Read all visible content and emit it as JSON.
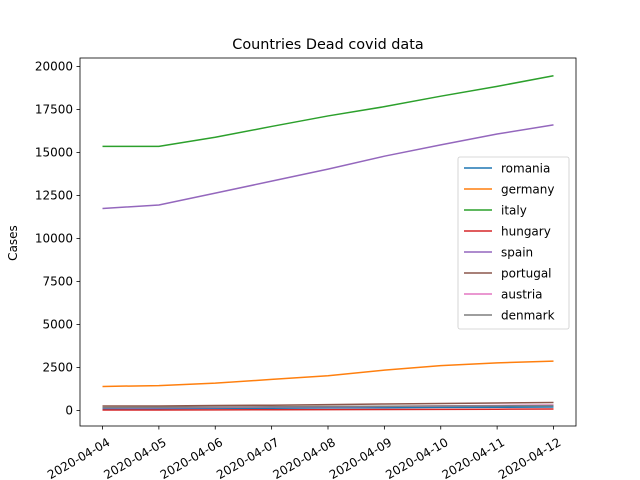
{
  "chart_data": {
    "type": "line",
    "title": "Countries Dead covid data",
    "xlabel": "",
    "ylabel": "Cases",
    "x": [
      "2020-04-04",
      "2020-04-05",
      "2020-04-06",
      "2020-04-07",
      "2020-04-08",
      "2020-04-09",
      "2020-04-10",
      "2020-04-11",
      "2020-04-12"
    ],
    "ylim": [
      -900,
      20500
    ],
    "yticks": [
      0,
      2500,
      5000,
      7500,
      10000,
      12500,
      15000,
      17500,
      20000
    ],
    "ytick_labels": [
      "0",
      "2500",
      "5000",
      "7500",
      "10000",
      "12500",
      "15000",
      "17500",
      "20000"
    ],
    "xtick_rotation": 30,
    "grid": false,
    "legend_position": "center-right",
    "series": [
      {
        "name": "romania",
        "color": "#1f77b4",
        "values": [
          92,
          104,
          123,
          133,
          153,
          161,
          180,
          189,
          206
        ]
      },
      {
        "name": "germany",
        "color": "#ff7f0e",
        "values": [
          1400,
          1450,
          1590,
          1810,
          2020,
          2350,
          2610,
          2770,
          2870
        ]
      },
      {
        "name": "italy",
        "color": "#2ca02c",
        "values": [
          15360,
          15360,
          15890,
          16520,
          17130,
          17670,
          18280,
          18850,
          19470
        ]
      },
      {
        "name": "hungary",
        "color": "#d62728",
        "values": [
          32,
          34,
          38,
          47,
          52,
          58,
          66,
          77,
          85
        ]
      },
      {
        "name": "spain",
        "color": "#9467bd",
        "values": [
          11750,
          11950,
          12640,
          13340,
          14040,
          14790,
          15450,
          16080,
          16610
        ]
      },
      {
        "name": "portugal",
        "color": "#8c564b",
        "values": [
          260,
          265,
          295,
          310,
          345,
          380,
          410,
          435,
          470
        ]
      },
      {
        "name": "austria",
        "color": "#e377c2",
        "values": [
          158,
          168,
          186,
          204,
          220,
          243,
          273,
          295,
          319
        ]
      },
      {
        "name": "denmark",
        "color": "#7f7f7f",
        "values": [
          179,
          187,
          203,
          218,
          237,
          247,
          260,
          273,
          285
        ]
      }
    ]
  }
}
